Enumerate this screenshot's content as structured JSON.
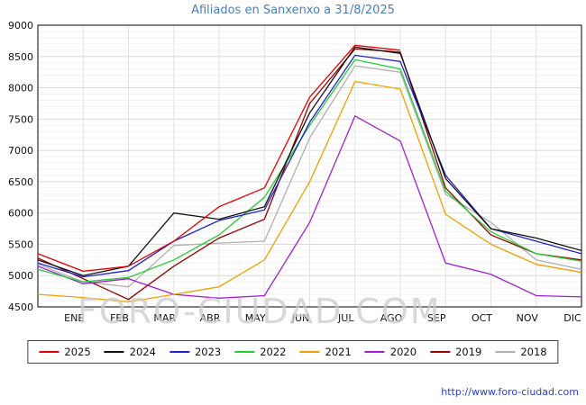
{
  "watermark": "FORO-CIUDAD.COM",
  "footer": {
    "url": "http://www.foro-ciudad.com"
  },
  "chart_data": {
    "type": "line",
    "title": "Afiliados en Sanxenxo a 31/8/2025",
    "title_color": "#4a7ebc",
    "xlabel": "",
    "ylabel": "",
    "ylim": [
      4500,
      9000
    ],
    "ytick_step": 500,
    "grid": true,
    "legend_position": "bottom",
    "categories": [
      "ENE",
      "FEB",
      "MAR",
      "ABR",
      "MAY",
      "JUN",
      "JUL",
      "AGO",
      "SEP",
      "OCT",
      "NOV",
      "DIC"
    ],
    "series": [
      {
        "name": "2025",
        "color": "#e60000",
        "start": 5350,
        "values": [
          5070,
          5150,
          5550,
          6100,
          6400,
          7850,
          8680,
          8600,
          null,
          null,
          null,
          null
        ]
      },
      {
        "name": "2024",
        "color": "#111111",
        "start": 5250,
        "values": [
          5000,
          5150,
          6000,
          5900,
          6100,
          7600,
          8650,
          8550,
          6550,
          5750,
          5600,
          5400
        ]
      },
      {
        "name": "2023",
        "color": "#2020cc",
        "start": 5200,
        "values": [
          4980,
          5080,
          5550,
          5880,
          6050,
          7450,
          8520,
          8420,
          6600,
          5750,
          5550,
          5350
        ]
      },
      {
        "name": "2022",
        "color": "#22cc33",
        "start": 5100,
        "values": [
          4900,
          4970,
          5250,
          5650,
          6250,
          7400,
          8450,
          8300,
          6350,
          5700,
          5350,
          5230
        ]
      },
      {
        "name": "2021",
        "color": "#f0a000",
        "start": 4700,
        "values": [
          4650,
          4580,
          4700,
          4820,
          5250,
          6500,
          8100,
          7980,
          5980,
          5500,
          5180,
          5050
        ]
      },
      {
        "name": "2020",
        "color": "#a020d0",
        "start": 5150,
        "values": [
          4870,
          4950,
          4700,
          4640,
          4680,
          5850,
          7550,
          7150,
          5200,
          5020,
          4680,
          4660
        ]
      },
      {
        "name": "2019",
        "color": "#990000",
        "start": 5280,
        "values": [
          4950,
          4620,
          5150,
          5600,
          5900,
          7750,
          8620,
          8570,
          6400,
          5650,
          5350,
          5250
        ]
      },
      {
        "name": "2018",
        "color": "#b0b0b0",
        "start": 5180,
        "values": [
          4900,
          4820,
          5480,
          5520,
          5550,
          7200,
          8350,
          8250,
          6300,
          5850,
          5250,
          5100
        ]
      }
    ]
  }
}
